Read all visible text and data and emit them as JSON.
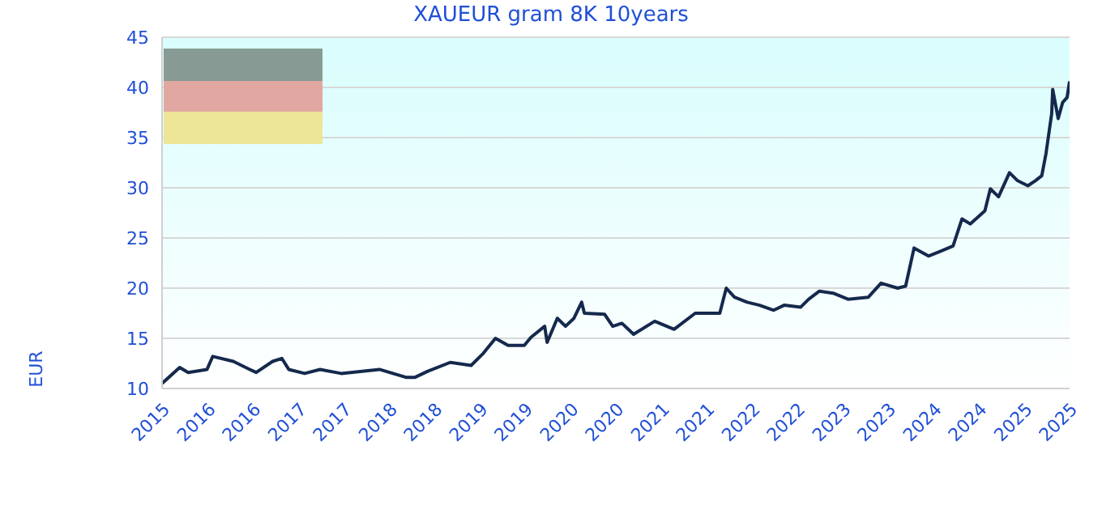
{
  "chart_data": {
    "type": "line",
    "title": "XAUEUR gram 8K 10years",
    "ylabel": "EUR",
    "x": [
      "2015-08-01",
      "2015-10-11",
      "2015-11-14",
      "2016-01-29",
      "2016-02-21",
      "2016-05-14",
      "2016-07-19",
      "2016-08-14",
      "2016-10-19",
      "2016-11-25",
      "2016-12-23",
      "2017-02-25",
      "2017-04-28",
      "2017-07-22",
      "2017-12-23",
      "2018-04-11",
      "2018-05-14",
      "2018-07-04",
      "2018-10-04",
      "2018-12-27",
      "2019-02-14",
      "2019-04-04",
      "2019-05-25",
      "2019-07-29",
      "2019-08-25",
      "2019-10-19",
      "2019-10-29",
      "2019-12-09",
      "2020-01-11",
      "2020-02-14",
      "2020-03-16",
      "2020-03-27",
      "2020-06-16",
      "2020-07-19",
      "2020-08-25",
      "2020-10-11",
      "2021-01-04",
      "2021-03-23",
      "2021-06-16",
      "2021-09-23",
      "2021-10-19",
      "2021-11-21",
      "2022-01-11",
      "2022-03-02",
      "2022-04-28",
      "2022-06-09",
      "2022-08-14",
      "2022-09-16",
      "2022-10-29",
      "2022-12-23",
      "2023-02-21",
      "2023-05-14",
      "2023-07-04",
      "2023-09-09",
      "2023-10-11",
      "2023-11-14",
      "2024-01-11",
      "2024-03-02",
      "2024-04-19",
      "2024-05-25",
      "2024-06-27",
      "2024-08-25",
      "2024-09-16",
      "2024-10-19",
      "2024-12-02",
      "2025-01-04",
      "2025-02-14",
      "2025-03-16",
      "2025-04-11",
      "2025-04-28",
      "2025-05-21",
      "2025-05-25",
      "2025-06-16",
      "2025-07-04",
      "2025-07-22",
      "2025-08-01"
    ],
    "series": [
      {
        "color": "#15294d",
        "values": [
          10.5,
          12.1,
          11.6,
          11.9,
          13.2,
          12.7,
          11.9,
          11.6,
          12.7,
          13.0,
          11.9,
          11.5,
          11.9,
          11.5,
          11.9,
          11.1,
          11.1,
          11.7,
          12.6,
          12.3,
          13.5,
          15.0,
          14.3,
          14.3,
          15.1,
          16.2,
          14.6,
          17.0,
          16.2,
          17.0,
          18.6,
          17.5,
          17.4,
          16.2,
          16.5,
          15.4,
          16.7,
          15.9,
          17.5,
          17.5,
          20.0,
          19.1,
          18.6,
          18.3,
          17.8,
          18.3,
          18.1,
          18.9,
          19.7,
          19.5,
          18.9,
          19.1,
          20.5,
          20.0,
          20.2,
          24.0,
          23.2,
          23.7,
          24.2,
          26.9,
          26.4,
          27.7,
          29.9,
          29.1,
          31.5,
          30.7,
          30.2,
          30.7,
          31.2,
          33.4,
          37.4,
          39.8,
          36.9,
          38.5,
          39.0,
          40.6
        ]
      }
    ],
    "xlim": [
      "2015-08",
      "2025-08"
    ],
    "xticks": [
      {
        "value": "2015-08",
        "label": "2015"
      },
      {
        "value": "2016-02",
        "label": "2016"
      },
      {
        "value": "2016-08",
        "label": "2016"
      },
      {
        "value": "2017-02",
        "label": "2017"
      },
      {
        "value": "2017-08",
        "label": "2017"
      },
      {
        "value": "2018-02",
        "label": "2018"
      },
      {
        "value": "2018-08",
        "label": "2018"
      },
      {
        "value": "2019-02",
        "label": "2019"
      },
      {
        "value": "2019-08",
        "label": "2019"
      },
      {
        "value": "2020-02",
        "label": "2020"
      },
      {
        "value": "2020-08",
        "label": "2020"
      },
      {
        "value": "2021-02",
        "label": "2021"
      },
      {
        "value": "2021-08",
        "label": "2021"
      },
      {
        "value": "2022-02",
        "label": "2022"
      },
      {
        "value": "2022-08",
        "label": "2022"
      },
      {
        "value": "2023-02",
        "label": "2023"
      },
      {
        "value": "2023-08",
        "label": "2023"
      },
      {
        "value": "2024-02",
        "label": "2024"
      },
      {
        "value": "2024-08",
        "label": "2024"
      },
      {
        "value": "2025-02",
        "label": "2025"
      },
      {
        "value": "2025-08",
        "label": "2025"
      }
    ],
    "ylim": [
      10,
      45
    ],
    "yticks": [
      10,
      15,
      20,
      25,
      30,
      35,
      40,
      45
    ],
    "grid": "y",
    "legend": false,
    "marker": "none",
    "line_style": "solid"
  }
}
